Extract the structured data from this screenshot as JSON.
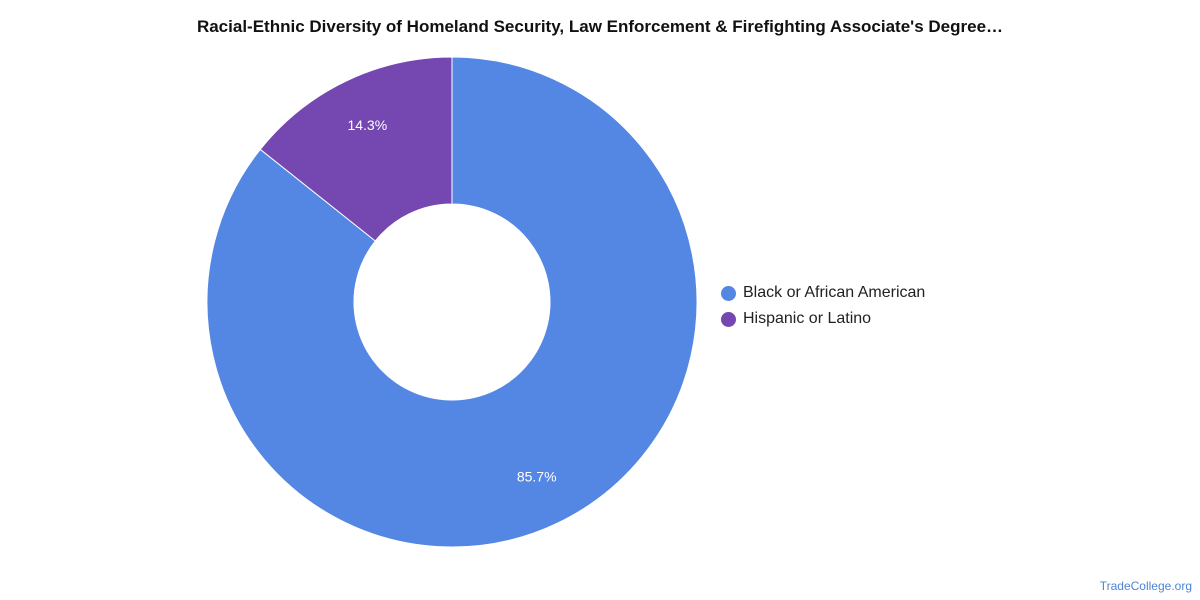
{
  "chart_data": {
    "type": "pie",
    "title": "Racial-Ethnic Diversity of Homeland Security, Law Enforcement & Firefighting Associate's Degree…",
    "donut": true,
    "legend_position": "right",
    "categories": [
      "Black or African American",
      "Hispanic or Latino"
    ],
    "values": [
      85.7,
      14.3
    ],
    "labels": [
      "85.7%",
      "14.3%"
    ],
    "colors": [
      "#5486e4",
      "#7547b0"
    ]
  },
  "source": "TradeCollege.org"
}
